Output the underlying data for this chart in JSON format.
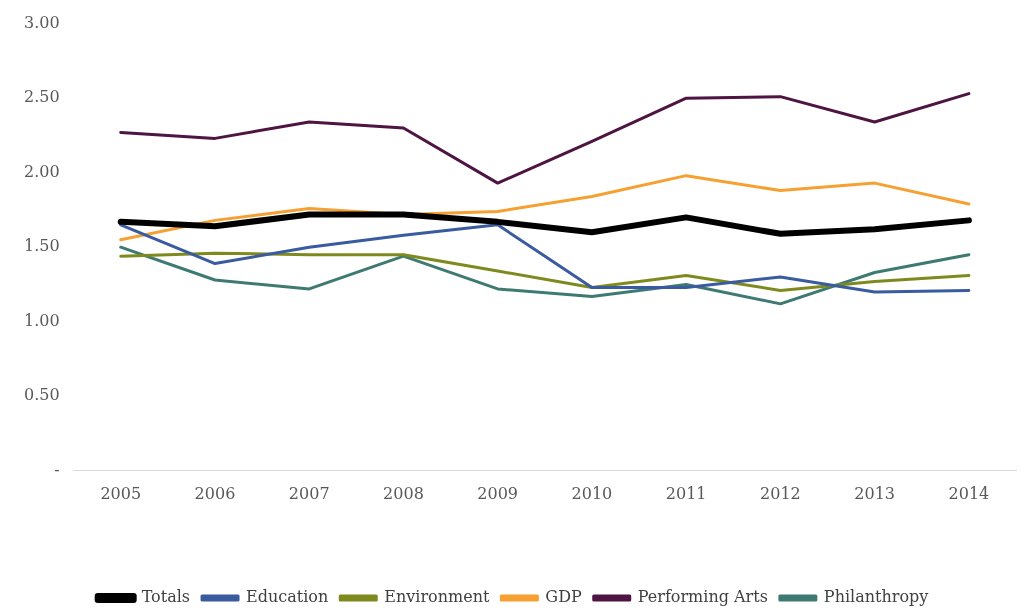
{
  "chart_data": {
    "type": "line",
    "categories": [
      "2005",
      "2006",
      "2007",
      "2008",
      "2009",
      "2010",
      "2011",
      "2012",
      "2013",
      "2014"
    ],
    "series": [
      {
        "name": "Totals",
        "color": "#000000",
        "values": [
          1.67,
          1.64,
          1.72,
          1.72,
          1.67,
          1.6,
          1.7,
          1.59,
          1.62,
          1.68
        ]
      },
      {
        "name": "Education",
        "color": "#3a5ba0",
        "values": [
          1.65,
          1.39,
          1.5,
          1.58,
          1.65,
          1.23,
          1.23,
          1.3,
          1.2,
          1.21
        ]
      },
      {
        "name": "Environment",
        "color": "#7f8a1e",
        "values": [
          1.44,
          1.46,
          1.45,
          1.45,
          1.34,
          1.23,
          1.31,
          1.21,
          1.27,
          1.31
        ]
      },
      {
        "name": "GDP",
        "color": "#f5a030",
        "values": [
          1.55,
          1.68,
          1.76,
          1.72,
          1.74,
          1.84,
          1.98,
          1.88,
          1.93,
          1.79
        ]
      },
      {
        "name": "Performing Arts",
        "color": "#4e1442",
        "values": [
          2.27,
          2.23,
          2.34,
          2.3,
          1.93,
          2.21,
          2.5,
          2.51,
          2.34,
          2.53
        ]
      },
      {
        "name": "Philanthropy",
        "color": "#3f7a72",
        "values": [
          1.5,
          1.28,
          1.22,
          1.44,
          1.22,
          1.17,
          1.25,
          1.12,
          1.33,
          1.45
        ]
      }
    ],
    "ylim": [
      0,
      3
    ],
    "yticks": [
      {
        "value": 0,
        "label": "-"
      },
      {
        "value": 0.5,
        "label": "0.50"
      },
      {
        "value": 1,
        "label": "1.00"
      },
      {
        "value": 1.5,
        "label": "1.50"
      },
      {
        "value": 2,
        "label": "2.00"
      },
      {
        "value": 2.5,
        "label": "2.50"
      },
      {
        "value": 3,
        "label": "3.00"
      }
    ],
    "grid": false,
    "legend": "bottom",
    "marker": "none",
    "line_style": "solid"
  }
}
